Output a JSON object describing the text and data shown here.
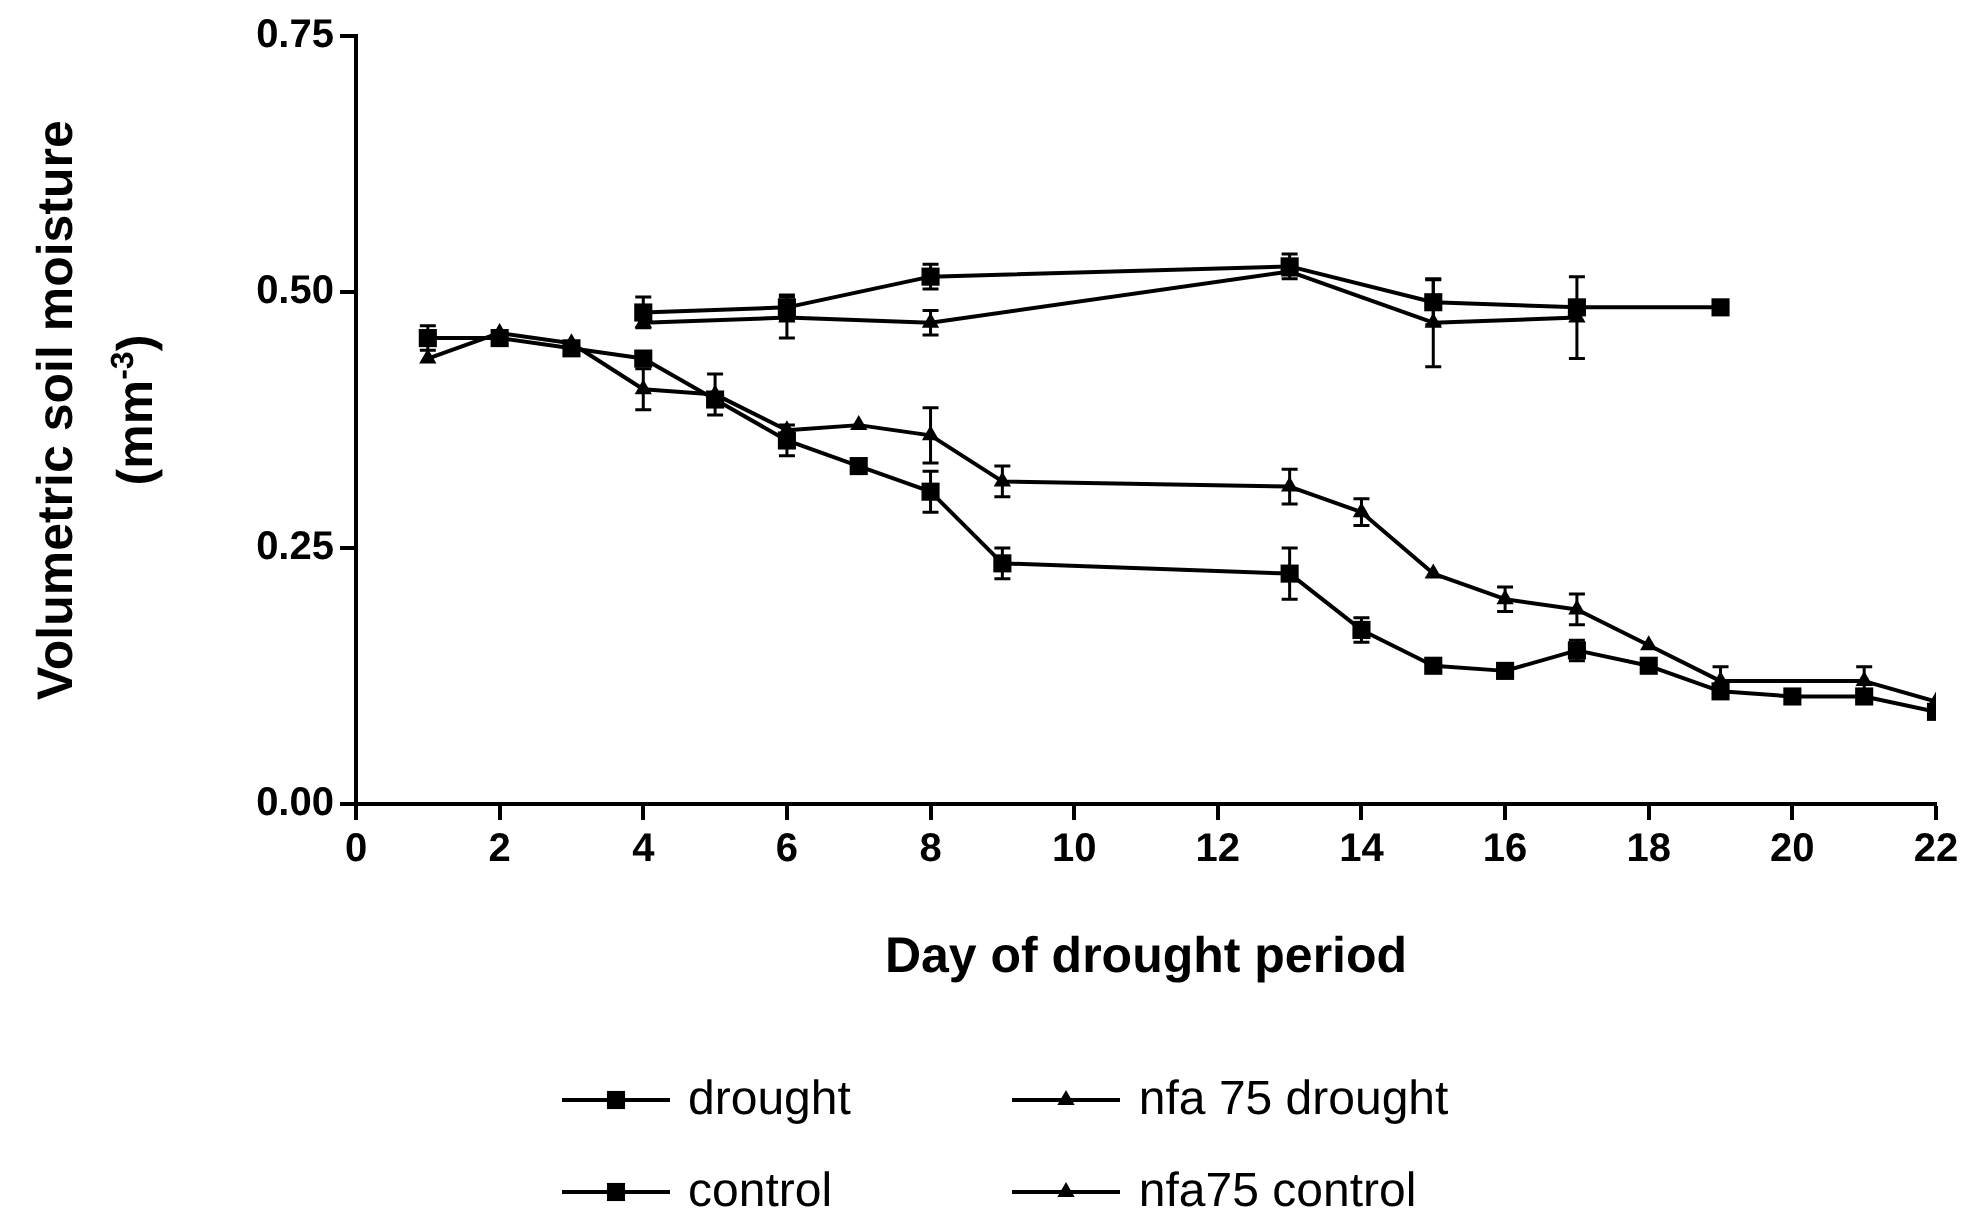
{
  "chart_data": {
    "type": "line",
    "xlabel": "Day of drought period",
    "ylabel": "Volumetric soil moisture (mm$^{-3}$)",
    "xlim": [
      0,
      22
    ],
    "xticks": [
      0,
      2,
      4,
      6,
      8,
      10,
      12,
      14,
      16,
      18,
      20,
      22
    ],
    "ylim": [
      0,
      0.75
    ],
    "yticks": [
      {
        "value": 0,
        "label": "0.00"
      },
      0.25,
      {
        "value": 0.5,
        "label": "0.50"
      },
      {
        "value": 0.75,
        "label": "0.75"
      }
    ],
    "grid": false,
    "legend": "bottom",
    "series": [
      {
        "name": "drought",
        "color": "#000000",
        "marker": "square",
        "x": [
          1,
          2,
          3,
          4,
          5,
          6,
          7,
          8,
          9,
          13,
          14,
          15,
          16,
          17,
          18,
          19,
          20,
          21,
          22
        ],
        "values": [
          0.455,
          0.455,
          0.445,
          0.435,
          0.395,
          0.355,
          0.33,
          0.305,
          0.235,
          0.225,
          0.17,
          0.135,
          0.13,
          0.15,
          0.135,
          0.11,
          0.105,
          0.105,
          0.09
        ],
        "errors": [
          0.012,
          null,
          null,
          null,
          null,
          0.015,
          null,
          0.02,
          0.015,
          0.025,
          0.012,
          null,
          null,
          0.01,
          null,
          null,
          null,
          null,
          null
        ]
      },
      {
        "name": "control",
        "color": "#000000",
        "marker": "square",
        "x": [
          4,
          6,
          8,
          13,
          15,
          17,
          19
        ],
        "values": [
          0.48,
          0.485,
          0.515,
          0.525,
          0.49,
          0.485,
          0.485
        ],
        "errors": [
          0.015,
          0.012,
          0.012,
          0.012,
          0.022,
          null,
          null
        ]
      },
      {
        "name": "nfa 75 drought",
        "color": "#000000",
        "marker": "triangle",
        "x": [
          1,
          2,
          3,
          4,
          5,
          6,
          7,
          8,
          9,
          13,
          14,
          15,
          16,
          17,
          18,
          19,
          21,
          22
        ],
        "values": [
          0.435,
          0.46,
          0.45,
          0.405,
          0.4,
          0.365,
          0.37,
          0.36,
          0.315,
          0.31,
          0.285,
          0.225,
          0.2,
          0.19,
          0.155,
          0.12,
          0.12,
          0.1
        ],
        "errors": [
          null,
          null,
          null,
          0.02,
          0.02,
          null,
          null,
          0.027,
          0.015,
          0.017,
          0.013,
          null,
          0.012,
          0.015,
          null,
          0.014,
          0.014,
          null
        ]
      },
      {
        "name": "nfa75 control",
        "color": "#000000",
        "marker": "triangle",
        "x": [
          4,
          6,
          8,
          13,
          15,
          17
        ],
        "values": [
          0.47,
          0.475,
          0.47,
          0.52,
          0.47,
          0.475
        ],
        "errors": [
          null,
          0.02,
          0.012,
          null,
          0.043,
          0.04
        ]
      }
    ]
  }
}
